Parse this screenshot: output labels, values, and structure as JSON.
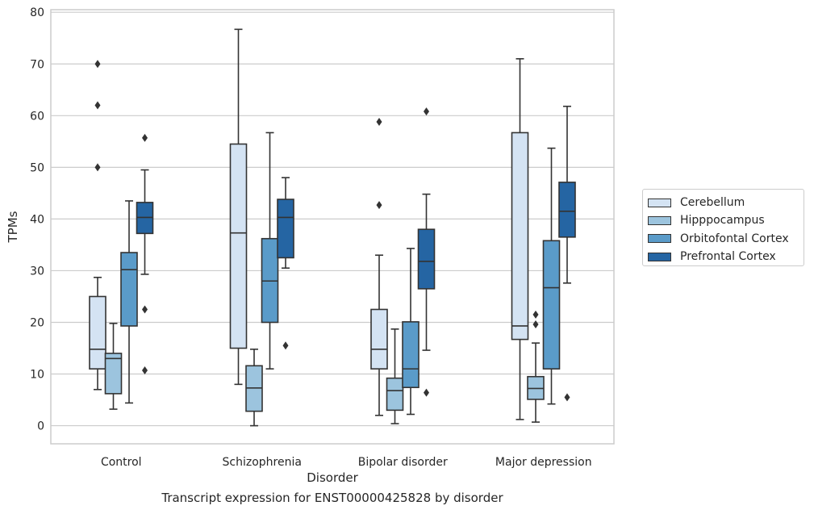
{
  "caption": "Transcript expression for ENST00000425828 by disorder",
  "chart_data": {
    "type": "box",
    "title": "",
    "xlabel": "Disorder",
    "ylabel": "TPMs",
    "categories": [
      "Control",
      "Schizophrenia",
      "Bipolar disorder",
      "Major depression"
    ],
    "ylim": [
      -3.5,
      80.5
    ],
    "yticks": [
      0,
      10,
      20,
      30,
      40,
      50,
      60,
      70,
      80
    ],
    "grid": "horizontal",
    "legend_position": "center-right outside",
    "series": [
      {
        "name": "Cerebellum",
        "color": "#d4e3f3",
        "boxes": [
          {
            "whisker_low": 7,
            "q1": 11,
            "median": 14.8,
            "q3": 25,
            "whisker_high": 28.7,
            "outliers": [
              70,
              62,
              50
            ]
          },
          {
            "whisker_low": 8,
            "q1": 15,
            "median": 37.3,
            "q3": 54.5,
            "whisker_high": 76.7,
            "outliers": []
          },
          {
            "whisker_low": 2,
            "q1": 11,
            "median": 14.8,
            "q3": 22.5,
            "whisker_high": 33,
            "outliers": [
              58.8,
              42.7
            ]
          },
          {
            "whisker_low": 1.2,
            "q1": 16.7,
            "median": 19.3,
            "q3": 56.7,
            "whisker_high": 71,
            "outliers": []
          }
        ]
      },
      {
        "name": "Hipppocampus",
        "color": "#9cc4de",
        "boxes": [
          {
            "whisker_low": 3.2,
            "q1": 6.2,
            "median": 13,
            "q3": 14,
            "whisker_high": 19.8,
            "outliers": []
          },
          {
            "whisker_low": 0,
            "q1": 2.8,
            "median": 7.3,
            "q3": 11.6,
            "whisker_high": 14.8,
            "outliers": []
          },
          {
            "whisker_low": 0.4,
            "q1": 3,
            "median": 6.8,
            "q3": 9.2,
            "whisker_high": 18.7,
            "outliers": []
          },
          {
            "whisker_low": 0.7,
            "q1": 5.1,
            "median": 7.2,
            "q3": 9.5,
            "whisker_high": 16,
            "outliers": [
              21.5,
              19.6
            ]
          }
        ]
      },
      {
        "name": "Orbitofontal Cortex",
        "color": "#5a9bc9",
        "boxes": [
          {
            "whisker_low": 4.4,
            "q1": 19.3,
            "median": 30.2,
            "q3": 33.5,
            "whisker_high": 43.5,
            "outliers": []
          },
          {
            "whisker_low": 11,
            "q1": 20,
            "median": 28,
            "q3": 36.2,
            "whisker_high": 56.7,
            "outliers": []
          },
          {
            "whisker_low": 2.2,
            "q1": 7.4,
            "median": 11,
            "q3": 20.1,
            "whisker_high": 34.3,
            "outliers": []
          },
          {
            "whisker_low": 4.2,
            "q1": 11,
            "median": 26.7,
            "q3": 35.8,
            "whisker_high": 53.7,
            "outliers": []
          }
        ]
      },
      {
        "name": "Prefrontal Cortex",
        "color": "#2565a3",
        "boxes": [
          {
            "whisker_low": 29.3,
            "q1": 37.2,
            "median": 40.3,
            "q3": 43.2,
            "whisker_high": 49.5,
            "outliers": [
              55.7,
              22.5,
              10.7
            ]
          },
          {
            "whisker_low": 30.5,
            "q1": 32.5,
            "median": 40.3,
            "q3": 43.8,
            "whisker_high": 48,
            "outliers": [
              15.5
            ]
          },
          {
            "whisker_low": 14.6,
            "q1": 26.5,
            "median": 31.8,
            "q3": 38,
            "whisker_high": 44.8,
            "outliers": [
              60.8,
              6.4
            ]
          },
          {
            "whisker_low": 27.6,
            "q1": 36.5,
            "median": 41.5,
            "q3": 47.1,
            "whisker_high": 61.8,
            "outliers": [
              5.5
            ]
          }
        ]
      }
    ]
  }
}
